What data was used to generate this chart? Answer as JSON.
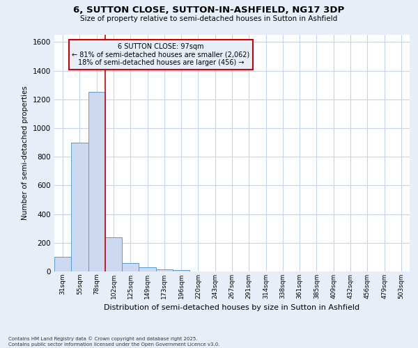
{
  "title": "6, SUTTON CLOSE, SUTTON-IN-ASHFIELD, NG17 3DP",
  "subtitle": "Size of property relative to semi-detached houses in Sutton in Ashfield",
  "xlabel": "Distribution of semi-detached houses by size in Sutton in Ashfield",
  "ylabel": "Number of semi-detached properties",
  "footnote": "Contains HM Land Registry data © Crown copyright and database right 2025.\nContains public sector information licensed under the Open Government Licence v3.0.",
  "bar_labels": [
    "31sqm",
    "55sqm",
    "78sqm",
    "102sqm",
    "125sqm",
    "149sqm",
    "173sqm",
    "196sqm",
    "220sqm",
    "243sqm",
    "267sqm",
    "291sqm",
    "314sqm",
    "338sqm",
    "361sqm",
    "385sqm",
    "409sqm",
    "432sqm",
    "456sqm",
    "479sqm",
    "503sqm"
  ],
  "bar_values": [
    100,
    900,
    1250,
    240,
    60,
    30,
    15,
    10,
    0,
    0,
    0,
    0,
    0,
    0,
    0,
    0,
    0,
    0,
    0,
    0,
    0
  ],
  "bar_color": "#ccd9f0",
  "bar_edge_color": "#5b9bd5",
  "grid_color": "#c8d4e8",
  "background_color": "#e8eef8",
  "plot_bg_color": "#ffffff",
  "annotation_line1": "6 SUTTON CLOSE: 97sqm",
  "annotation_line2": "← 81% of semi-detached houses are smaller (2,062)",
  "annotation_line3": "18% of semi-detached houses are larger (456) →",
  "annotation_box_color": "#cc0000",
  "red_line_x": 2.5,
  "ylim": [
    0,
    1650
  ],
  "yticks": [
    0,
    200,
    400,
    600,
    800,
    1000,
    1200,
    1400,
    1600
  ]
}
